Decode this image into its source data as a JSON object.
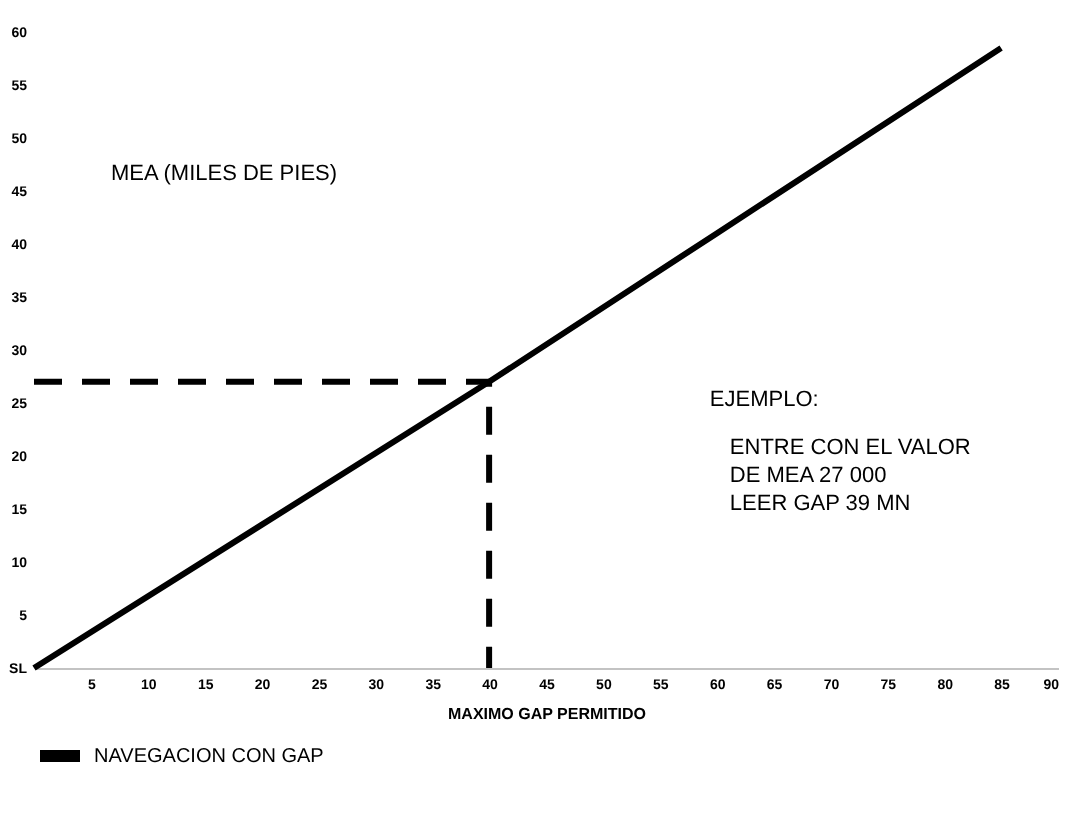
{
  "chart_data": {
    "type": "line",
    "xlabel": "MAXIMO GAP PERMITIDO",
    "ylabel": "MEA (MILES DE PIES)",
    "annotations": [
      "EJEMPLO:",
      "ENTRE CON EL VALOR",
      "DE MEA 27 000",
      "LEER GAP 39 MN"
    ],
    "series": [
      {
        "name": "NAVEGACION CON GAP",
        "color": "#000000",
        "line_style": "solid",
        "x": [
          0,
          20,
          40,
          60,
          85
        ],
        "values": [
          0,
          13.5,
          27,
          41,
          58.5
        ]
      },
      {
        "color": "#000000",
        "line_style": "dashed",
        "x": [
          0,
          40,
          40
        ],
        "values": [
          27,
          27,
          0
        ]
      }
    ],
    "xlim": [
      0,
      90
    ],
    "xticks": [
      5,
      10,
      15,
      20,
      25,
      30,
      35,
      40,
      45,
      50,
      55,
      60,
      65,
      70,
      75,
      80,
      85,
      90
    ],
    "ylim": [
      0,
      60
    ],
    "yticks": [
      {
        "value": 0,
        "label": "SL"
      },
      5,
      10,
      15,
      20,
      25,
      30,
      35,
      40,
      45,
      50,
      55,
      60
    ],
    "grid": false,
    "legend": "bottom",
    "marker": "none"
  }
}
